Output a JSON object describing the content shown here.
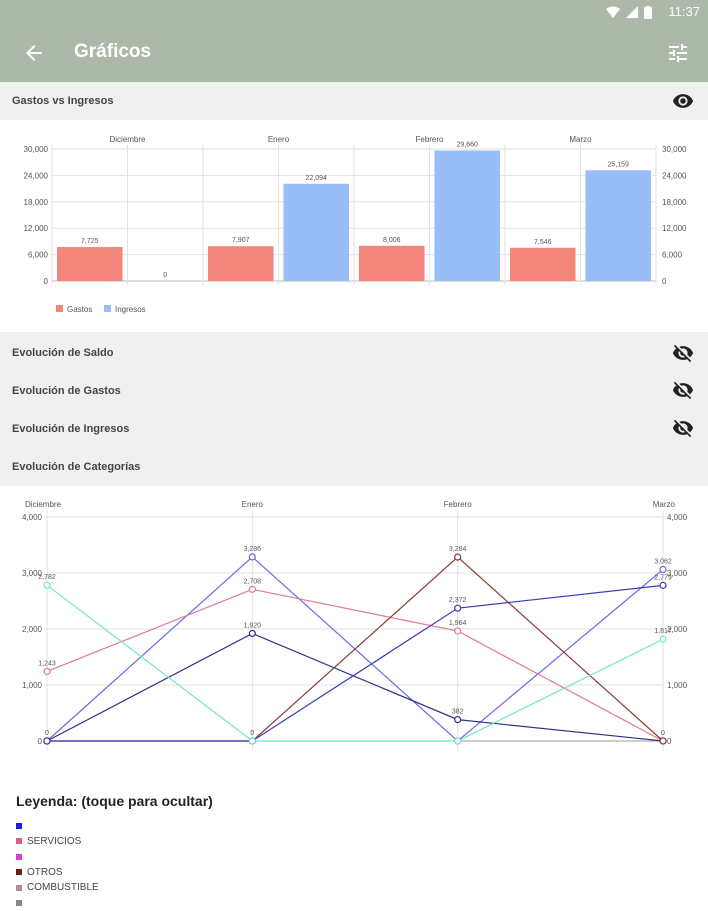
{
  "status_bar": {
    "time": "11:37"
  },
  "app_bar": {
    "title": "Gráficos"
  },
  "bar_section": {
    "title": "Gastos vs Ingresos"
  },
  "collapsed_sections": [
    {
      "label": "Evolución de Saldo"
    },
    {
      "label": "Evolución de Gastos"
    },
    {
      "label": "Evolución de Ingresos"
    }
  ],
  "categories_section": {
    "title": "Evolución de Categorías"
  },
  "legend": {
    "title": "Leyenda: (toque para ocultar)",
    "items": [
      {
        "label": "",
        "color": "#1a1aff"
      },
      {
        "label": "SERVICIOS",
        "color": "#e05a8a"
      },
      {
        "label": "",
        "color": "#d23fd2"
      },
      {
        "label": "OTROS",
        "color": "#6b1a1a"
      },
      {
        "label": "COMBUSTIBLE",
        "color": "#b08a96"
      },
      {
        "label": "",
        "color": "#888888"
      }
    ]
  },
  "chart_data": [
    {
      "type": "bar",
      "title": "",
      "categories": [
        "Diciembre",
        "Enero",
        "Febrero",
        "Marzo"
      ],
      "series": [
        {
          "name": "Gastos",
          "color": "#f4857a",
          "values": [
            7725,
            7907,
            8006,
            7546
          ]
        },
        {
          "name": "Ingresos",
          "color": "#98bdf7",
          "values": [
            0,
            22094,
            29660,
            25159
          ]
        }
      ],
      "data_labels": [
        [
          "7,725",
          "0"
        ],
        [
          "7,907",
          "22,094"
        ],
        [
          "8,006",
          "29,660"
        ],
        [
          "7,546",
          "25,159"
        ]
      ],
      "yticks": [
        "0",
        "6,000",
        "12,000",
        "18,000",
        "24,000",
        "30,000"
      ],
      "ylim": [
        0,
        30000
      ],
      "legend_position": "bottom-left",
      "grid": true
    },
    {
      "type": "line",
      "title": "",
      "categories": [
        "Diciembre",
        "Enero",
        "Febrero",
        "Marzo"
      ],
      "ylim": [
        0,
        4000
      ],
      "yticks": [
        "0",
        "1,000",
        "2,000",
        "3,000",
        "4,000"
      ],
      "grid": true,
      "series": [
        {
          "color": "#6a6ae8",
          "values": [
            0,
            3286,
            0,
            3062
          ]
        },
        {
          "color": "#e07896",
          "values": [
            1243,
            2708,
            1964,
            0
          ]
        },
        {
          "color": "#30308c",
          "values": [
            0,
            1920,
            382,
            0
          ]
        },
        {
          "color": "#8a3a3a",
          "values": [
            0,
            0,
            3284,
            0
          ]
        },
        {
          "color": "#3a3ab8",
          "values": [
            0,
            0,
            2372,
            2779
          ]
        },
        {
          "color": "#70e8c4",
          "values": [
            2782,
            0,
            0,
            1817
          ]
        }
      ],
      "point_labels": [
        {
          "text": "3,286"
        },
        {
          "text": "2,708"
        },
        {
          "text": "1,920"
        },
        {
          "text": "3,284"
        },
        {
          "text": "2,372"
        },
        {
          "text": "1,964"
        },
        {
          "text": "382"
        },
        {
          "text": "3,062"
        },
        {
          "text": "2,779"
        },
        {
          "text": "1,817"
        },
        {
          "text": "2,782"
        },
        {
          "text": "1,243"
        },
        {
          "text": "0"
        },
        {
          "text": "0"
        },
        {
          "text": "0"
        }
      ]
    }
  ]
}
